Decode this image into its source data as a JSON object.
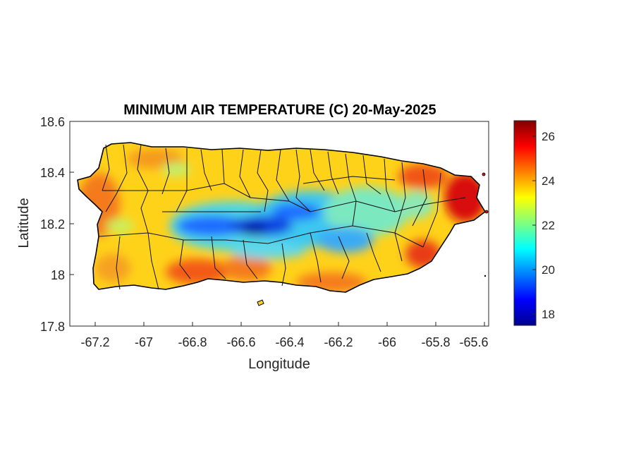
{
  "map": {
    "title": "MINIMUM AIR TEMPERATURE (C) 20-May-2025",
    "xlabel": "Longitude",
    "ylabel": "Latitude",
    "xlim": [
      -67.3,
      -65.58
    ],
    "ylim": [
      17.8,
      18.6
    ],
    "xticks": [
      "-67.2",
      "-67",
      "-66.8",
      "-66.6",
      "-66.4",
      "-66.2",
      "-66",
      "-65.8",
      "-65.6"
    ],
    "yticks": [
      "18.6",
      "18.4",
      "18.2",
      "18",
      "17.8"
    ],
    "colorbar": {
      "ticks": [
        "26",
        "24",
        "22",
        "20",
        "18"
      ],
      "min": 17.5,
      "max": 26.7,
      "colormap": "jet"
    },
    "region": "Puerto Rico",
    "coolest_area": "central mountains (~17.5 C)",
    "warmest_area": "east and north-east coast (~26 C)"
  }
}
